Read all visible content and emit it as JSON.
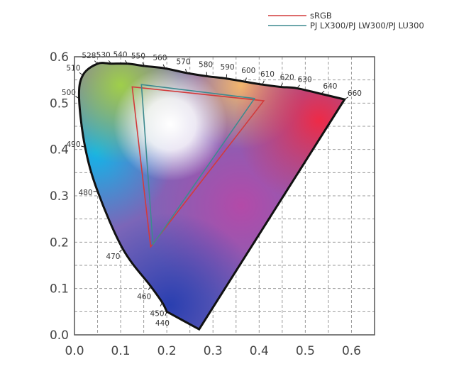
{
  "chart_data": {
    "type": "scatter",
    "title": "",
    "xlabel": "",
    "ylabel": "",
    "xlim": [
      0.0,
      0.65
    ],
    "ylim": [
      0.0,
      0.6
    ],
    "grid": true,
    "legend_position": "top-right",
    "x_ticks": [
      "0.0",
      "0.1",
      "0.2",
      "0.3",
      "0.4",
      "0.5",
      "0.6"
    ],
    "y_ticks": [
      "0.0",
      "0.1",
      "0.2",
      "0.3",
      "0.4",
      "0.5",
      "0.6"
    ],
    "spectral_locus": [
      {
        "nm": "440",
        "x": 0.2,
        "y": 0.05
      },
      {
        "nm": "450",
        "x": 0.19,
        "y": 0.07
      },
      {
        "nm": "460",
        "x": 0.165,
        "y": 0.105
      },
      {
        "nm": "470",
        "x": 0.105,
        "y": 0.185
      },
      {
        "nm": "480",
        "x": 0.05,
        "y": 0.31
      },
      {
        "nm": "490",
        "x": 0.023,
        "y": 0.405
      },
      {
        "nm": "500",
        "x": 0.01,
        "y": 0.51
      },
      {
        "nm": "510",
        "x": 0.018,
        "y": 0.56
      },
      {
        "nm": "528",
        "x": 0.05,
        "y": 0.585
      },
      {
        "nm": "530",
        "x": 0.08,
        "y": 0.585
      },
      {
        "nm": "540",
        "x": 0.115,
        "y": 0.585
      },
      {
        "nm": "550",
        "x": 0.152,
        "y": 0.58
      },
      {
        "nm": "560",
        "x": 0.196,
        "y": 0.575
      },
      {
        "nm": "570",
        "x": 0.243,
        "y": 0.565
      },
      {
        "nm": "580",
        "x": 0.287,
        "y": 0.558
      },
      {
        "nm": "590",
        "x": 0.329,
        "y": 0.553
      },
      {
        "nm": "600",
        "x": 0.37,
        "y": 0.546
      },
      {
        "nm": "610",
        "x": 0.407,
        "y": 0.54
      },
      {
        "nm": "620",
        "x": 0.446,
        "y": 0.535
      },
      {
        "nm": "630",
        "x": 0.482,
        "y": 0.532
      },
      {
        "nm": "640",
        "x": 0.534,
        "y": 0.52
      },
      {
        "nm": "660",
        "x": 0.585,
        "y": 0.508
      }
    ],
    "series": [
      {
        "name": "sRGB",
        "color": "#d23b3b",
        "points": [
          [
            0.125,
            0.535
          ],
          [
            0.41,
            0.505
          ],
          [
            0.165,
            0.19
          ]
        ]
      },
      {
        "name": "PJ LX300/PJ LW300/PJ LU300",
        "color": "#3d8a8f",
        "points": [
          [
            0.145,
            0.54
          ],
          [
            0.39,
            0.51
          ],
          [
            0.17,
            0.195
          ]
        ]
      }
    ]
  }
}
